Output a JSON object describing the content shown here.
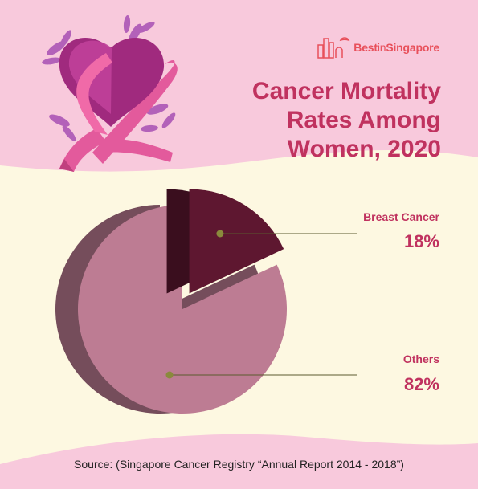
{
  "logo": {
    "part_a": "Best",
    "part_b": "in",
    "part_c": "Singapore"
  },
  "title": {
    "line1": "Cancer Mortality",
    "line2": "Rates Among",
    "line3": "Women, 2020"
  },
  "source": "Source: (Singapore Cancer Registry “Annual Report 2014 - 2018”)",
  "colors": {
    "header_band": "#f8c9dc",
    "background": "#fdf8e1",
    "title": "#c0325f",
    "breast_cancer_slice": "#5e1730",
    "others_slice": "#bd7c93",
    "leader_line": "#5a5a2e"
  },
  "illustration": {
    "icon": "heart-ribbon-icon"
  },
  "chart_data": {
    "type": "pie",
    "title": "Cancer Mortality Rates Among Women, 2020",
    "slices": [
      {
        "label": "Breast Cancer",
        "value": 18,
        "display": "18%",
        "color": "#5e1730",
        "exploded": true
      },
      {
        "label": "Others",
        "value": 82,
        "display": "82%",
        "color": "#bd7c93",
        "exploded": false
      }
    ],
    "style": "3d-exploded"
  }
}
